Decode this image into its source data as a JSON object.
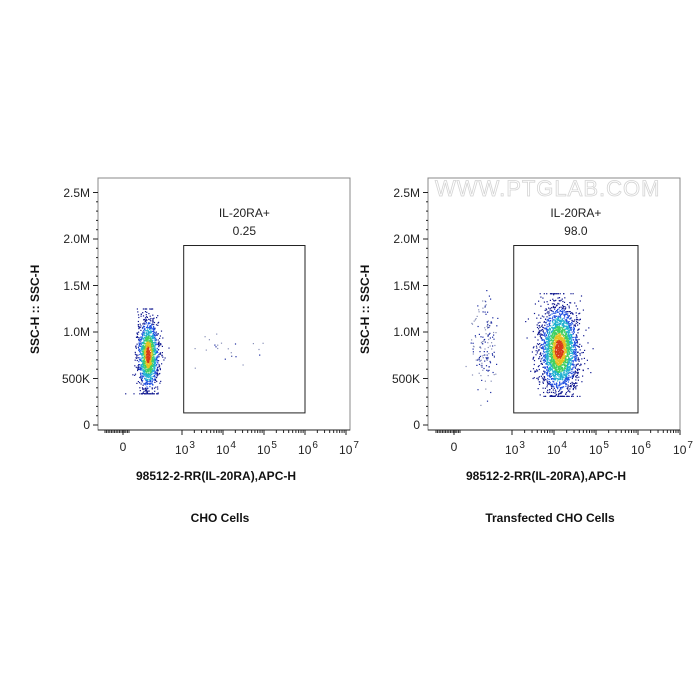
{
  "chart_data": [
    {
      "type": "scatter",
      "title": "CHO Cells",
      "xlabel": "98512-2-RR(IL-20RA),APC-H",
      "ylabel": "SSC-H :: SSC-H",
      "yticks": [
        "0",
        "500K",
        "1.0M",
        "1.5M",
        "2.0M",
        "2.5M"
      ],
      "ytick_values": [
        0,
        500000,
        1000000,
        1500000,
        2000000,
        2500000
      ],
      "xticks": [
        {
          "base": "0",
          "exp": ""
        },
        {
          "base": "10",
          "exp": "3"
        },
        {
          "base": "10",
          "exp": "4"
        },
        {
          "base": "10",
          "exp": "5"
        },
        {
          "base": "10",
          "exp": "6"
        },
        {
          "base": "10",
          "exp": "7"
        }
      ],
      "xscale": "biexponential",
      "ylim": [
        0,
        2650000
      ],
      "gate": {
        "name": "IL-20RA+",
        "value": "0.25",
        "x_range": [
          1100,
          1000000
        ],
        "y_range": [
          130000,
          1930000
        ]
      },
      "populations": [
        {
          "x_center": 420,
          "x_spread": 90,
          "y_center": 760000,
          "y_spread": 190000,
          "count": 1400,
          "dense": true
        },
        {
          "x_center": 5000,
          "x_spread": 1.3,
          "y_center": 850000,
          "y_spread": 100000,
          "count": 25,
          "dense": false
        }
      ]
    },
    {
      "type": "scatter",
      "title": "Transfected CHO Cells",
      "xlabel": "98512-2-RR(IL-20RA),APC-H",
      "ylabel": "SSC-H :: SSC-H",
      "yticks": [
        "0",
        "500K",
        "1.0M",
        "1.5M",
        "2.0M",
        "2.5M"
      ],
      "ytick_values": [
        0,
        500000,
        1000000,
        1500000,
        2000000,
        2500000
      ],
      "xticks": [
        {
          "base": "0",
          "exp": ""
        },
        {
          "base": "10",
          "exp": "3"
        },
        {
          "base": "10",
          "exp": "4"
        },
        {
          "base": "10",
          "exp": "5"
        },
        {
          "base": "10",
          "exp": "6"
        },
        {
          "base": "10",
          "exp": "7"
        }
      ],
      "xscale": "biexponential",
      "ylim": [
        0,
        2650000
      ],
      "watermark": "WWW.PTGLAB.COM",
      "gate": {
        "name": "IL-20RA+",
        "value": "98.0",
        "x_range": [
          1100,
          1000000
        ],
        "y_range": [
          130000,
          1930000
        ]
      },
      "populations": [
        {
          "x_center": 13000,
          "x_spread": 0.45,
          "y_center": 820000,
          "y_spread": 230000,
          "count": 2600,
          "dense": true
        },
        {
          "x_center": 520,
          "x_spread": 110,
          "y_center": 900000,
          "y_spread": 230000,
          "count": 150,
          "dense": false
        }
      ]
    }
  ]
}
